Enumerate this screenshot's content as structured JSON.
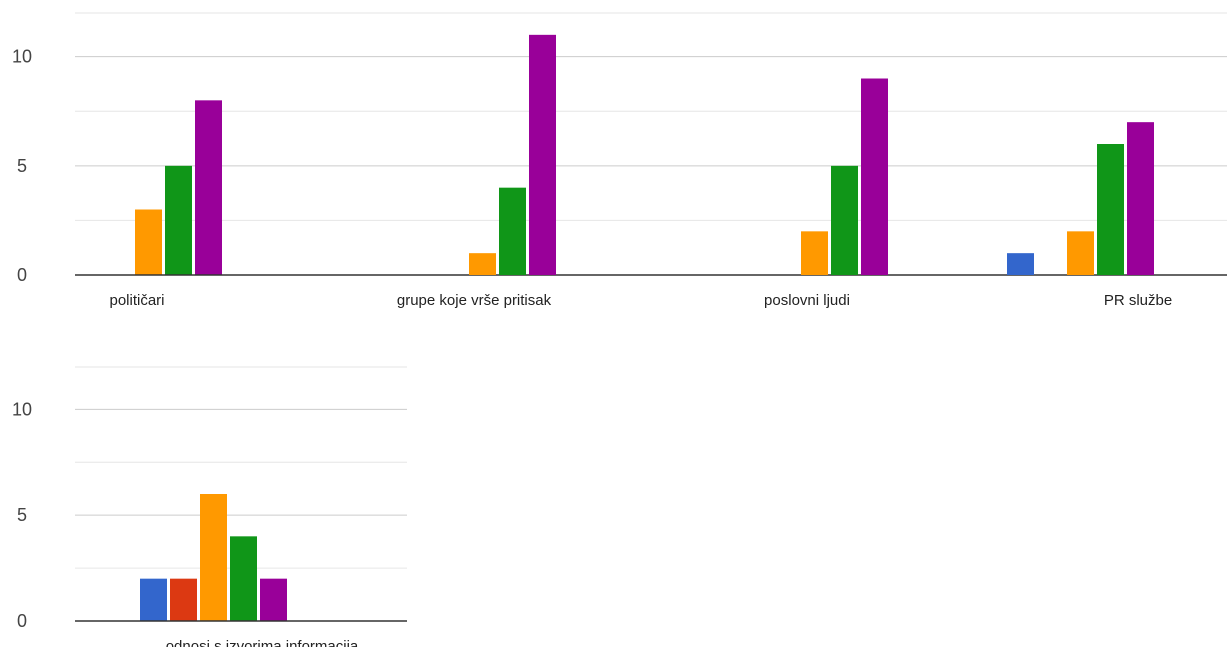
{
  "chart_data": {
    "type": "bar",
    "title": "",
    "xlabel": "",
    "ylabel": "",
    "ylim": [
      0,
      12
    ],
    "y_ticks": [
      "0",
      "5",
      "10"
    ],
    "grid": true,
    "colors": [
      "#3366cc",
      "#dc3912",
      "#ff9900",
      "#109618",
      "#990099"
    ],
    "categories": [
      "političari",
      "grupe koje vrše pritisak",
      "poslovni ljudi",
      "PR službe",
      "odnosi s izvorima informacija"
    ],
    "series": [
      {
        "values": [
          0,
          0,
          0,
          1,
          2
        ]
      },
      {
        "values": [
          0,
          0,
          0,
          0,
          2
        ]
      },
      {
        "values": [
          3,
          1,
          2,
          2,
          6
        ]
      },
      {
        "values": [
          5,
          4,
          5,
          6,
          4
        ]
      },
      {
        "values": [
          8,
          11,
          9,
          7,
          2
        ]
      }
    ]
  }
}
